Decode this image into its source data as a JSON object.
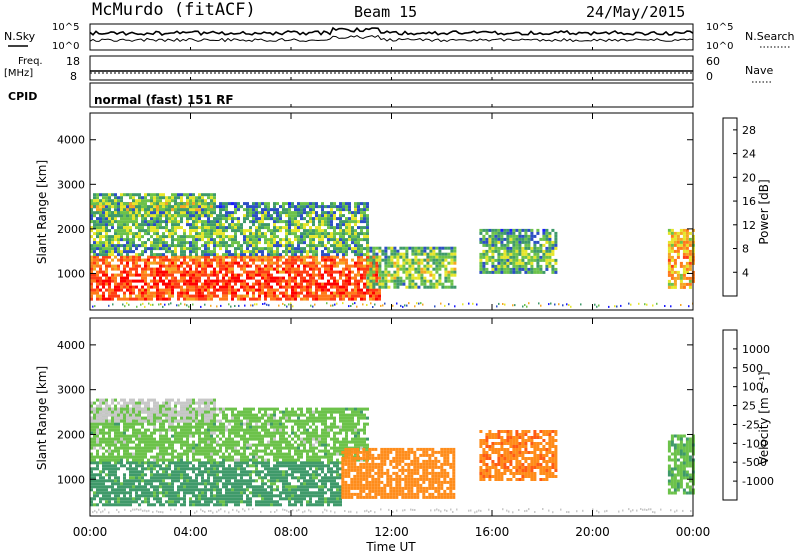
{
  "header": {
    "station": "McMurdo (fitACF)",
    "beam": "Beam 15",
    "date": "24/May/2015"
  },
  "top_panels": {
    "nsky_label": "N.Sky",
    "nsky_ticks": [
      "10^5",
      "10^0"
    ],
    "nsearch_label": "N.Search",
    "nsearch_ticks": [
      "10^5",
      "10^0"
    ],
    "freq_label": "Freq.",
    "freq_unit": "[MHz]",
    "freq_ticks": [
      "18",
      "8"
    ],
    "nave_label": "Nave",
    "nave_ticks": [
      "60",
      "0"
    ],
    "cpid_label": "CPID",
    "cpid_text": "normal (fast) 151 RF"
  },
  "colors": {
    "power_scale": [
      "#1a1aff",
      "#2c4fc4",
      "#3f9a6a",
      "#6cc24a",
      "#e6e62a",
      "#f5a623",
      "#ff7a1a",
      "#ff3c14",
      "#ff0000"
    ],
    "velocity_scale": [
      "#ff0000",
      "#ff5a14",
      "#ff8c1a",
      "#f7c22a",
      "#c8c8c8",
      "#6cc24a",
      "#3f9a6a",
      "#2c4fc4",
      "#1a1aff"
    ]
  },
  "chart_data": [
    {
      "type": "heatmap",
      "title": "Power",
      "xlabel": "Time UT",
      "ylabel": "Slant Range [km]",
      "x_ticks": [
        "00:00",
        "04:00",
        "08:00",
        "12:00",
        "16:00",
        "20:00",
        "00:00"
      ],
      "xlim_hours": [
        0,
        24
      ],
      "y_ticks": [
        1000,
        2000,
        3000,
        4000
      ],
      "ylim": [
        180,
        4600
      ],
      "colorbar": {
        "label": "Power [dB]",
        "ticks": [
          4,
          8,
          12,
          16,
          20,
          24,
          28
        ],
        "range": [
          0,
          30
        ]
      },
      "regions": [
        {
          "t0": 0.0,
          "t1": 11.5,
          "r0": 400,
          "r1": 1400,
          "value": 26
        },
        {
          "t0": 0.0,
          "t1": 11.0,
          "r0": 1400,
          "r1": 2600,
          "value": 12
        },
        {
          "t0": 0.0,
          "t1": 5.0,
          "r0": 2300,
          "r1": 2800,
          "value": 14
        },
        {
          "t0": 11.0,
          "t1": 14.5,
          "r0": 700,
          "r1": 1600,
          "value": 14
        },
        {
          "t0": 15.5,
          "t1": 18.5,
          "r0": 1000,
          "r1": 2000,
          "value": 12
        },
        {
          "t0": 23.0,
          "t1": 24.0,
          "r0": 700,
          "r1": 2000,
          "value": 20
        }
      ]
    },
    {
      "type": "heatmap",
      "title": "Velocity",
      "xlabel": "Time UT",
      "ylabel": "Slant Range [km]",
      "x_ticks": [
        "00:00",
        "04:00",
        "08:00",
        "12:00",
        "16:00",
        "20:00",
        "00:00"
      ],
      "xlim_hours": [
        0,
        24
      ],
      "y_ticks": [
        1000,
        2000,
        3000,
        4000
      ],
      "ylim": [
        180,
        4600
      ],
      "colorbar": {
        "label": "Velocity [m s⁻¹]",
        "ticks": [
          1000,
          500,
          100,
          25,
          -25,
          -100,
          -500,
          -1000
        ]
      },
      "regions": [
        {
          "t0": 0.0,
          "t1": 10.0,
          "r0": 400,
          "r1": 1400,
          "value": 150
        },
        {
          "t0": 0.0,
          "t1": 11.0,
          "r0": 1400,
          "r1": 2600,
          "value": 60
        },
        {
          "t0": 0.0,
          "t1": 5.0,
          "r0": 2300,
          "r1": 2800,
          "value": 10
        },
        {
          "t0": 10.0,
          "t1": 14.5,
          "r0": 600,
          "r1": 1700,
          "value": -300
        },
        {
          "t0": 15.5,
          "t1": 18.5,
          "r0": 1000,
          "r1": 2100,
          "value": -400
        },
        {
          "t0": 23.0,
          "t1": 24.0,
          "r0": 700,
          "r1": 2000,
          "value": 80
        }
      ]
    }
  ]
}
